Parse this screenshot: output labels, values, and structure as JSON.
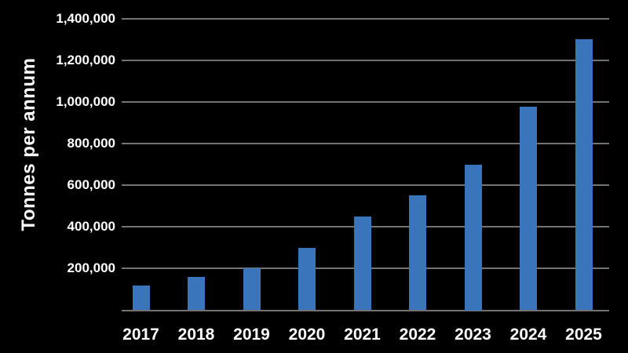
{
  "chart_data": {
    "type": "bar",
    "title": "",
    "ylabel": "Tonnes per annum",
    "xlabel": "",
    "categories": [
      "2017",
      "2018",
      "2019",
      "2020",
      "2021",
      "2022",
      "2023",
      "2024",
      "2025"
    ],
    "values": [
      120000,
      160000,
      200000,
      300000,
      450000,
      550000,
      700000,
      975000,
      1300000
    ],
    "ylim": [
      0,
      1400000
    ],
    "ytick_step": 200000,
    "yticks": [
      200000,
      400000,
      600000,
      800000,
      1000000,
      1200000,
      1400000
    ],
    "ytick_labels": [
      "200,000",
      "400,000",
      "600,000",
      "800,000",
      "1,000,000",
      "1,200,000",
      "1,400,000"
    ],
    "grid": true,
    "legend_position": "none",
    "colors": {
      "background": "#000000",
      "bar": "#3A74BB",
      "gridline": "#737373",
      "text": "#FFFFFF"
    }
  }
}
